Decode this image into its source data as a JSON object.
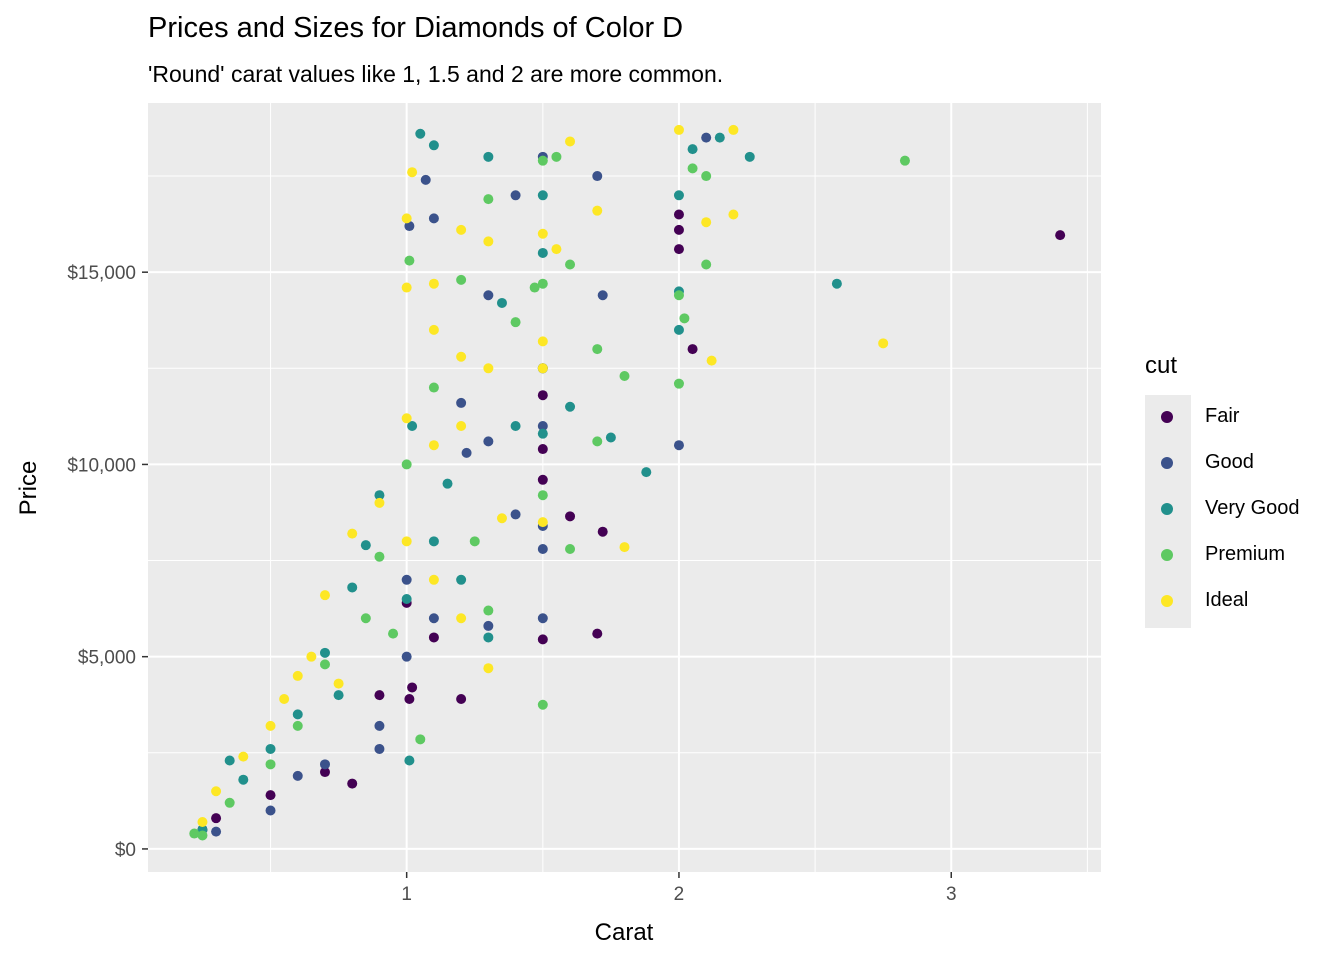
{
  "title": "Prices and Sizes for Diamonds of Color D",
  "subtitle": "'Round' carat values like 1, 1.5 and 2 are more common.",
  "chart_data": {
    "type": "scatter",
    "xlabel": "Carat",
    "ylabel": "Price",
    "xlim": [
      0.05,
      3.55
    ],
    "ylim": [
      -600,
      19400
    ],
    "x_ticks": [
      1,
      2,
      3
    ],
    "x_tick_labels": [
      "1",
      "2",
      "3"
    ],
    "y_ticks": [
      0,
      5000,
      10000,
      15000
    ],
    "y_tick_labels": [
      "$0",
      "$5,000",
      "$10,000",
      "$15,000"
    ],
    "grid": true,
    "legend_title": "cut",
    "legend_position": "right",
    "series": [
      {
        "name": "Fair",
        "color": "#440154",
        "points": [
          [
            3.4,
            15964
          ],
          [
            1.7,
            5600
          ],
          [
            1.5,
            5450
          ],
          [
            1.6,
            8650
          ],
          [
            1.72,
            8250
          ],
          [
            2.05,
            13000
          ],
          [
            2.0,
            15600
          ],
          [
            2.0,
            16100
          ],
          [
            2.0,
            16500
          ],
          [
            1.01,
            3900
          ],
          [
            1.02,
            4200
          ],
          [
            0.9,
            4000
          ],
          [
            0.8,
            1700
          ],
          [
            0.7,
            2000
          ],
          [
            0.5,
            1400
          ],
          [
            1.5,
            9600
          ],
          [
            1.5,
            10400
          ],
          [
            1.5,
            12500
          ],
          [
            1.5,
            11800
          ],
          [
            0.25,
            500
          ],
          [
            1.0,
            6400
          ],
          [
            1.1,
            5500
          ],
          [
            1.2,
            3900
          ],
          [
            0.3,
            800
          ]
        ]
      },
      {
        "name": "Good",
        "color": "#3b528b",
        "points": [
          [
            2.0,
            10500
          ],
          [
            1.7,
            17500
          ],
          [
            1.5,
            7800
          ],
          [
            1.5,
            8400
          ],
          [
            1.4,
            8700
          ],
          [
            1.72,
            14400
          ],
          [
            1.01,
            16200
          ],
          [
            1.07,
            17400
          ],
          [
            1.1,
            16400
          ],
          [
            1.3,
            14400
          ],
          [
            1.3,
            10600
          ],
          [
            1.5,
            11000
          ],
          [
            1.2,
            11600
          ],
          [
            0.9,
            3200
          ],
          [
            0.9,
            2600
          ],
          [
            0.7,
            2200
          ],
          [
            0.6,
            1900
          ],
          [
            0.3,
            450
          ],
          [
            0.5,
            1000
          ],
          [
            1.0,
            5000
          ],
          [
            1.0,
            7000
          ],
          [
            1.1,
            6000
          ],
          [
            1.3,
            5800
          ],
          [
            1.5,
            6000
          ],
          [
            1.5,
            18000
          ],
          [
            2.1,
            18500
          ],
          [
            1.22,
            10300
          ],
          [
            1.4,
            17000
          ]
        ]
      },
      {
        "name": "Very Good",
        "color": "#21908c",
        "points": [
          [
            2.58,
            14700
          ],
          [
            1.88,
            9800
          ],
          [
            2.26,
            18000
          ],
          [
            2.0,
            17000
          ],
          [
            2.05,
            18200
          ],
          [
            2.15,
            18500
          ],
          [
            2.0,
            13500
          ],
          [
            1.05,
            18600
          ],
          [
            1.1,
            18300
          ],
          [
            1.3,
            18000
          ],
          [
            1.5,
            17000
          ],
          [
            1.5,
            15500
          ],
          [
            1.35,
            14200
          ],
          [
            1.75,
            10700
          ],
          [
            1.6,
            11500
          ],
          [
            1.5,
            10800
          ],
          [
            1.4,
            11000
          ],
          [
            0.9,
            9200
          ],
          [
            0.85,
            7900
          ],
          [
            0.8,
            6800
          ],
          [
            0.7,
            5100
          ],
          [
            0.6,
            3500
          ],
          [
            0.5,
            2600
          ],
          [
            0.35,
            2300
          ],
          [
            0.25,
            500
          ],
          [
            1.0,
            6500
          ],
          [
            1.01,
            2300
          ],
          [
            1.1,
            8000
          ],
          [
            1.2,
            7000
          ],
          [
            1.3,
            5500
          ],
          [
            1.5,
            12500
          ],
          [
            2.0,
            14500
          ],
          [
            0.4,
            1800
          ],
          [
            0.75,
            4000
          ],
          [
            1.02,
            11000
          ],
          [
            1.15,
            9500
          ]
        ]
      },
      {
        "name": "Premium",
        "color": "#5ec962",
        "points": [
          [
            2.83,
            17900
          ],
          [
            2.1,
            15200
          ],
          [
            2.05,
            17700
          ],
          [
            2.0,
            14400
          ],
          [
            2.0,
            12100
          ],
          [
            2.02,
            13800
          ],
          [
            1.5,
            3750
          ],
          [
            1.5,
            17900
          ],
          [
            1.55,
            18000
          ],
          [
            1.3,
            16900
          ],
          [
            1.6,
            15200
          ],
          [
            1.8,
            12300
          ],
          [
            1.7,
            13000
          ],
          [
            1.6,
            7800
          ],
          [
            1.5,
            14700
          ],
          [
            1.4,
            13700
          ],
          [
            1.2,
            14800
          ],
          [
            1.1,
            12000
          ],
          [
            1.05,
            2850
          ],
          [
            1.01,
            15300
          ],
          [
            0.95,
            5600
          ],
          [
            0.9,
            7600
          ],
          [
            0.85,
            6000
          ],
          [
            0.7,
            4800
          ],
          [
            0.6,
            3200
          ],
          [
            0.5,
            2200
          ],
          [
            0.35,
            1200
          ],
          [
            0.25,
            350
          ],
          [
            0.22,
            400
          ],
          [
            1.0,
            10000
          ],
          [
            1.25,
            8000
          ],
          [
            1.3,
            6200
          ],
          [
            1.5,
            9200
          ],
          [
            1.7,
            10600
          ],
          [
            2.1,
            17500
          ],
          [
            1.47,
            14600
          ]
        ]
      },
      {
        "name": "Ideal",
        "color": "#fde725",
        "points": [
          [
            2.75,
            13150
          ],
          [
            2.0,
            18700
          ],
          [
            2.2,
            18700
          ],
          [
            2.2,
            16500
          ],
          [
            2.1,
            16300
          ],
          [
            2.12,
            12700
          ],
          [
            1.8,
            7850
          ],
          [
            1.7,
            16600
          ],
          [
            1.6,
            18400
          ],
          [
            1.5,
            16000
          ],
          [
            1.3,
            15800
          ],
          [
            1.2,
            16100
          ],
          [
            1.1,
            14700
          ],
          [
            1.02,
            17600
          ],
          [
            1.0,
            16400
          ],
          [
            1.0,
            14600
          ],
          [
            1.1,
            13500
          ],
          [
            1.2,
            12800
          ],
          [
            1.3,
            12500
          ],
          [
            1.2,
            11000
          ],
          [
            1.1,
            10500
          ],
          [
            1.0,
            11200
          ],
          [
            0.9,
            9000
          ],
          [
            0.8,
            8200
          ],
          [
            0.7,
            6600
          ],
          [
            0.65,
            5000
          ],
          [
            0.6,
            4500
          ],
          [
            0.5,
            3200
          ],
          [
            0.4,
            2400
          ],
          [
            0.3,
            1500
          ],
          [
            0.25,
            700
          ],
          [
            1.0,
            8000
          ],
          [
            1.1,
            7000
          ],
          [
            1.2,
            6000
          ],
          [
            1.3,
            4700
          ],
          [
            1.5,
            13200
          ],
          [
            1.5,
            8500
          ],
          [
            1.5,
            12500
          ],
          [
            0.75,
            4300
          ],
          [
            0.55,
            3900
          ],
          [
            1.35,
            8600
          ],
          [
            1.55,
            15600
          ]
        ]
      }
    ]
  }
}
